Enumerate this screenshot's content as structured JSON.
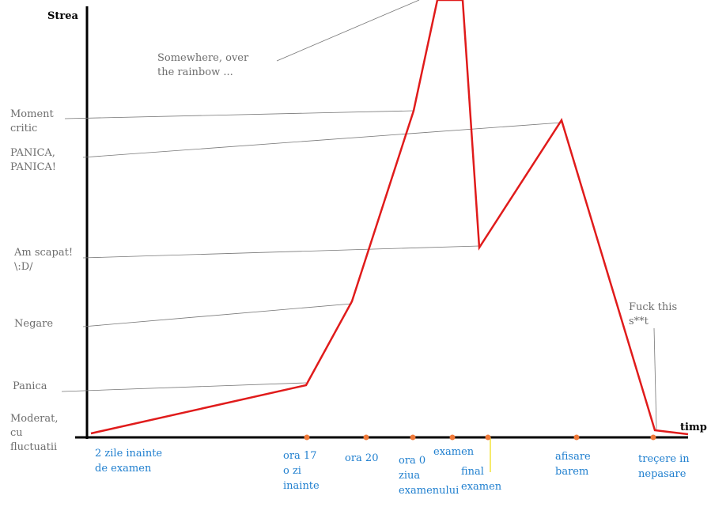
{
  "axis": {
    "y_label": "Strea",
    "x_label": "timp"
  },
  "stress_levels": [
    {
      "lines": [
        "Moment",
        "critic"
      ]
    },
    {
      "lines": [
        "PANICA,",
        "PANICA!"
      ]
    },
    {
      "lines": [
        "Am scapat!",
        "\\:D/"
      ]
    },
    {
      "lines": [
        "Negare"
      ]
    },
    {
      "lines": [
        "Panica"
      ]
    },
    {
      "lines": [
        "Moderat,",
        "cu",
        "fluctuatii"
      ]
    }
  ],
  "annotations": [
    {
      "lines": [
        "Somewhere, over",
        "the rainbow ..."
      ]
    },
    {
      "lines": [
        "Fuck this",
        "s**t"
      ]
    }
  ],
  "time_points": [
    {
      "lines": [
        "2 zile inainte",
        "de examen"
      ]
    },
    {
      "lines": [
        "ora 17",
        "o zi",
        "inainte"
      ]
    },
    {
      "lines": [
        "ora 20"
      ]
    },
    {
      "lines": [
        "ora 0",
        "ziua",
        "examenului"
      ]
    },
    {
      "lines": [
        "examen"
      ]
    },
    {
      "lines": [
        "final",
        "examen"
      ]
    },
    {
      "lines": [
        "afisare",
        "barem"
      ]
    },
    {
      "lines": [
        "treçere in",
        "nepasare"
      ]
    }
  ]
}
